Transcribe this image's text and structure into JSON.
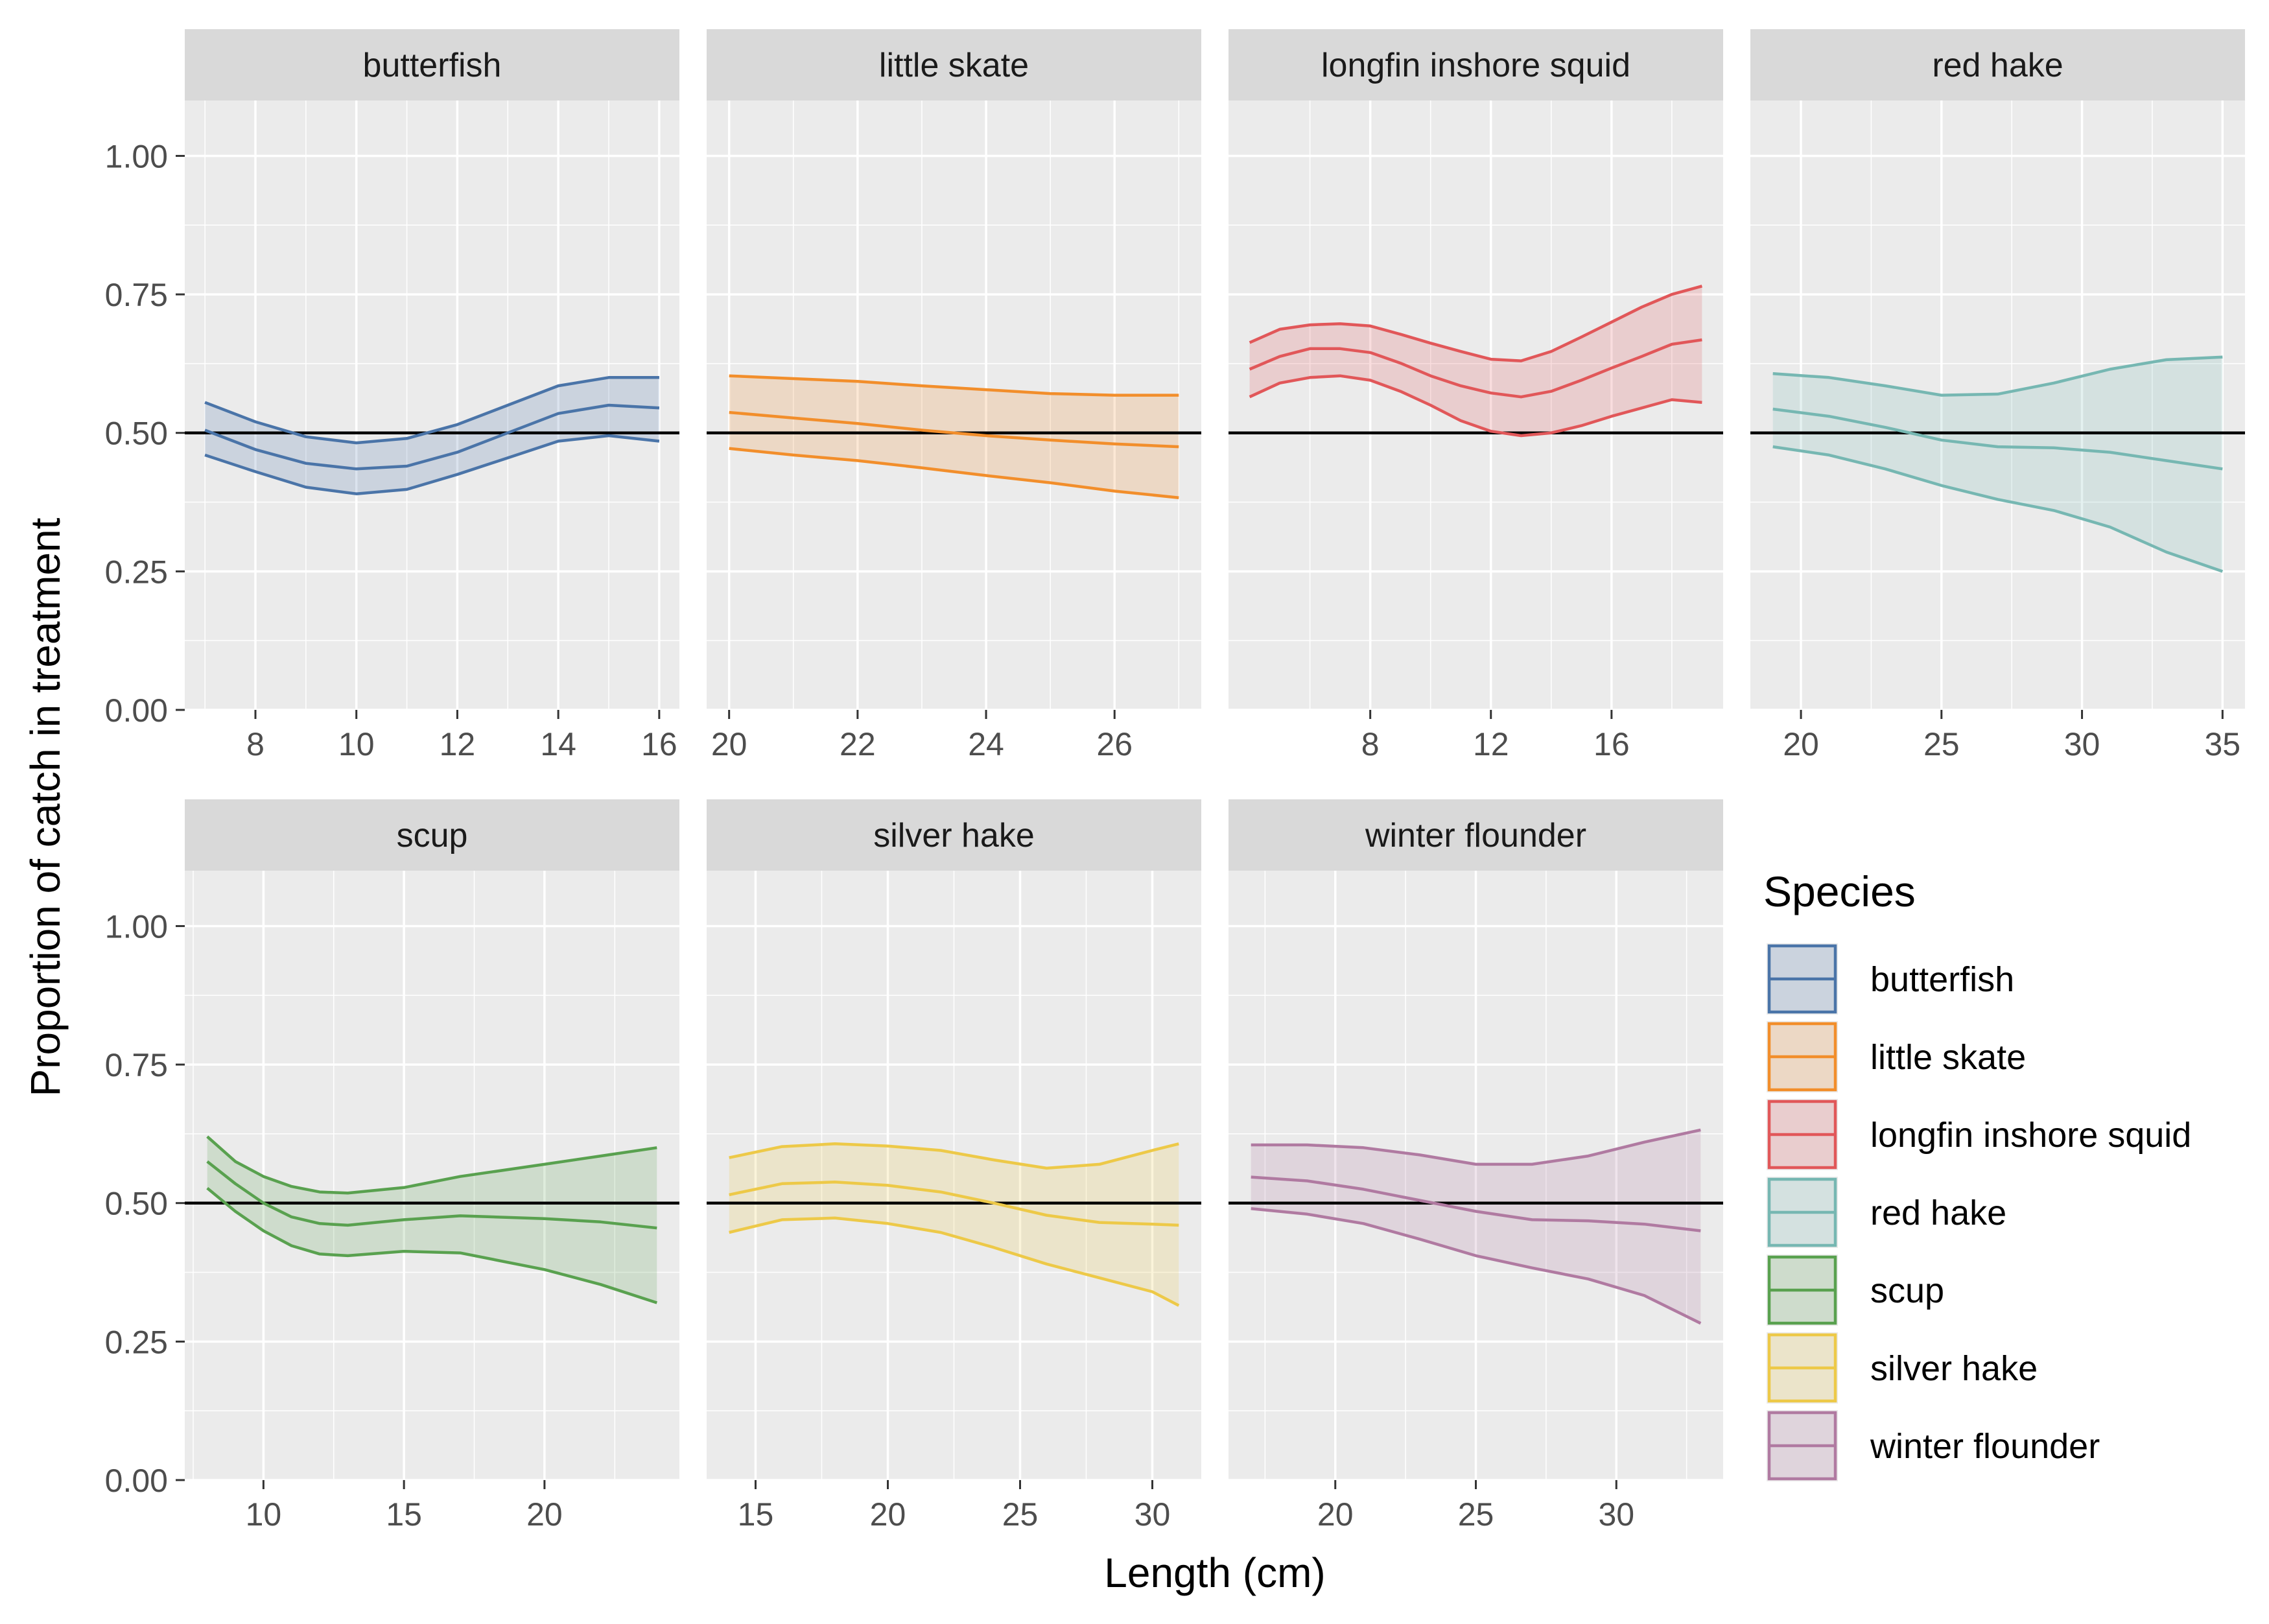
{
  "chart_data": {
    "type": "area",
    "xlabel": "Length (cm)",
    "ylabel": "Proportion of catch in treatment",
    "ylim": [
      0,
      1.1
    ],
    "y_ticks": [
      0,
      0.25,
      0.5,
      0.75,
      1.0
    ],
    "y_tick_labels": [
      "0.00",
      "0.25",
      "0.50",
      "0.75",
      "1.00"
    ],
    "reference_line": 0.5,
    "grid": true,
    "legend": {
      "title": "Species",
      "placement": "bottom-right",
      "entries": [
        "butterfish",
        "little skate",
        "longfin inshore squid",
        "red hake",
        "scup",
        "silver hake",
        "winter flounder"
      ]
    },
    "panels": [
      {
        "name": "butterfish",
        "color": "#4a74a8",
        "xlim": [
          6.6,
          16.4
        ],
        "x_ticks": [
          8,
          10,
          12,
          14,
          16
        ],
        "x": [
          7,
          8,
          9,
          10,
          11,
          12,
          13,
          14,
          15,
          16
        ],
        "fit": [
          0.505,
          0.47,
          0.445,
          0.435,
          0.44,
          0.465,
          0.5,
          0.535,
          0.55,
          0.545
        ],
        "lower": [
          0.46,
          0.43,
          0.402,
          0.39,
          0.398,
          0.425,
          0.455,
          0.485,
          0.495,
          0.485
        ],
        "upper": [
          0.555,
          0.52,
          0.493,
          0.482,
          0.49,
          0.515,
          0.55,
          0.585,
          0.6,
          0.6
        ]
      },
      {
        "name": "little skate",
        "color": "#f28e2b",
        "xlim": [
          19.65,
          27.35
        ],
        "x_ticks": [
          20,
          22,
          24,
          26
        ],
        "x": [
          20,
          21,
          22,
          23,
          24,
          25,
          26,
          27
        ],
        "fit": [
          0.537,
          0.527,
          0.517,
          0.505,
          0.495,
          0.487,
          0.48,
          0.475
        ],
        "lower": [
          0.472,
          0.46,
          0.45,
          0.437,
          0.423,
          0.41,
          0.395,
          0.383
        ],
        "upper": [
          0.603,
          0.598,
          0.593,
          0.585,
          0.578,
          0.571,
          0.568,
          0.568
        ]
      },
      {
        "name": "longfin inshore squid",
        "color": "#e15759",
        "xlim": [
          3.3,
          19.7
        ],
        "x_ticks": [
          8,
          12,
          16
        ],
        "x": [
          4,
          5,
          6,
          7,
          8,
          9,
          10,
          11,
          12,
          13,
          14,
          15,
          16,
          17,
          18,
          19
        ],
        "fit": [
          0.615,
          0.638,
          0.652,
          0.652,
          0.645,
          0.626,
          0.603,
          0.585,
          0.572,
          0.565,
          0.575,
          0.595,
          0.617,
          0.638,
          0.66,
          0.668
        ],
        "lower": [
          0.565,
          0.59,
          0.6,
          0.603,
          0.595,
          0.575,
          0.55,
          0.522,
          0.503,
          0.495,
          0.5,
          0.513,
          0.53,
          0.545,
          0.56,
          0.555
        ],
        "upper": [
          0.663,
          0.687,
          0.695,
          0.697,
          0.693,
          0.678,
          0.662,
          0.647,
          0.633,
          0.63,
          0.647,
          0.673,
          0.7,
          0.727,
          0.75,
          0.765
        ]
      },
      {
        "name": "red hake",
        "color": "#76b7b2",
        "xlim": [
          18.2,
          35.8
        ],
        "x_ticks": [
          20,
          25,
          30,
          35
        ],
        "x": [
          19,
          21,
          23,
          25,
          27,
          29,
          31,
          33,
          35
        ],
        "fit": [
          0.543,
          0.53,
          0.51,
          0.487,
          0.475,
          0.473,
          0.465,
          0.45,
          0.435
        ],
        "lower": [
          0.475,
          0.46,
          0.435,
          0.405,
          0.38,
          0.36,
          0.33,
          0.285,
          0.25
        ],
        "upper": [
          0.607,
          0.6,
          0.585,
          0.568,
          0.57,
          0.59,
          0.615,
          0.632,
          0.637
        ]
      },
      {
        "name": "scup",
        "color": "#59a14f",
        "xlim": [
          7.2,
          24.8
        ],
        "x_ticks": [
          10,
          15,
          20
        ],
        "x": [
          8,
          9,
          10,
          11,
          12,
          13,
          15,
          17,
          20,
          22,
          24
        ],
        "fit": [
          0.575,
          0.535,
          0.5,
          0.475,
          0.463,
          0.46,
          0.47,
          0.477,
          0.472,
          0.466,
          0.455
        ],
        "lower": [
          0.527,
          0.485,
          0.45,
          0.423,
          0.408,
          0.405,
          0.413,
          0.41,
          0.38,
          0.353,
          0.32
        ],
        "upper": [
          0.62,
          0.575,
          0.548,
          0.53,
          0.52,
          0.518,
          0.528,
          0.548,
          0.57,
          0.585,
          0.6
        ]
      },
      {
        "name": "silver hake",
        "color": "#edc948",
        "xlim": [
          13.15,
          31.85
        ],
        "x_ticks": [
          15,
          20,
          25,
          30
        ],
        "x": [
          14,
          16,
          18,
          20,
          22,
          24,
          26,
          28,
          30,
          31
        ],
        "fit": [
          0.515,
          0.535,
          0.538,
          0.532,
          0.52,
          0.5,
          0.478,
          0.465,
          0.462,
          0.46
        ],
        "lower": [
          0.447,
          0.47,
          0.473,
          0.463,
          0.447,
          0.42,
          0.39,
          0.365,
          0.34,
          0.315
        ],
        "upper": [
          0.582,
          0.602,
          0.607,
          0.603,
          0.595,
          0.578,
          0.563,
          0.57,
          0.595,
          0.607
        ]
      },
      {
        "name": "winter flounder",
        "color": "#b07aa1",
        "xlim": [
          16.2,
          33.8
        ],
        "x_ticks": [
          20,
          25,
          30
        ],
        "x": [
          17,
          19,
          21,
          23,
          25,
          27,
          29,
          31,
          33
        ],
        "fit": [
          0.547,
          0.54,
          0.525,
          0.505,
          0.485,
          0.47,
          0.468,
          0.462,
          0.45
        ],
        "lower": [
          0.49,
          0.48,
          0.463,
          0.435,
          0.405,
          0.383,
          0.363,
          0.333,
          0.283
        ],
        "upper": [
          0.605,
          0.605,
          0.6,
          0.587,
          0.57,
          0.57,
          0.585,
          0.61,
          0.632
        ]
      }
    ]
  }
}
